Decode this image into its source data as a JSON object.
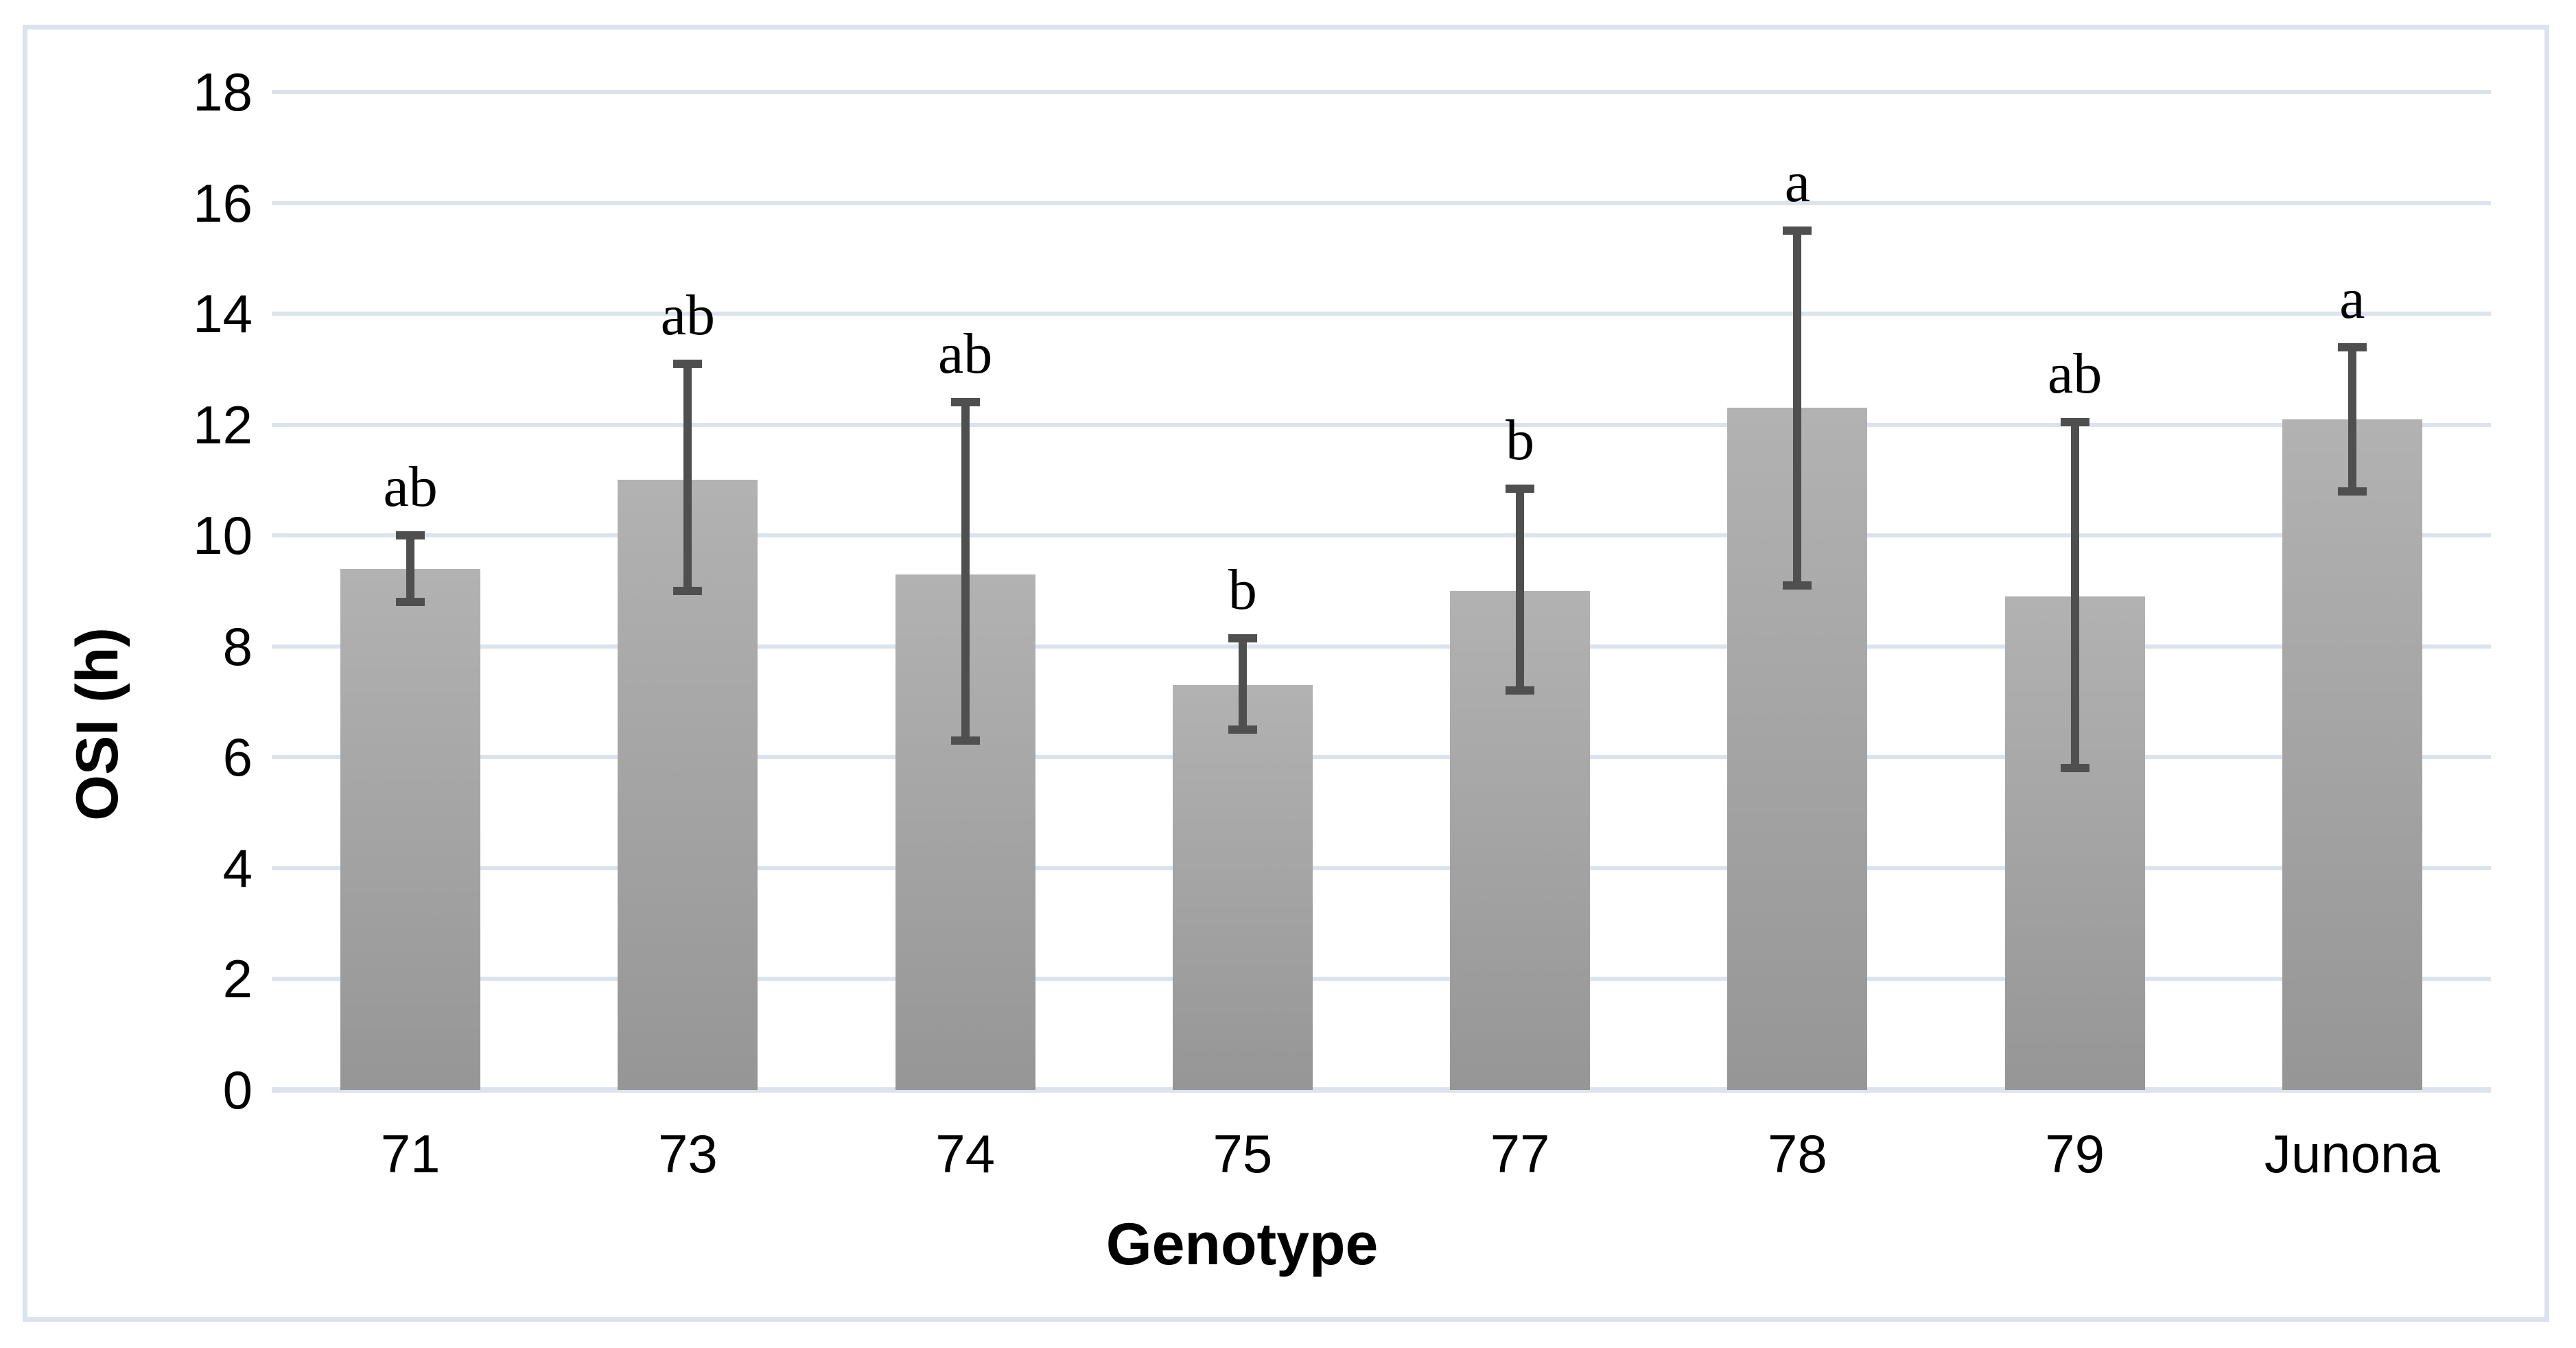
{
  "figure": {
    "background": "#ffffff",
    "border_color": "#dce3ec"
  },
  "chart_data": {
    "type": "bar",
    "xlabel": "Genotype",
    "ylabel": "OSI (h)",
    "categories": [
      "71",
      "73",
      "74",
      "75",
      "77",
      "78",
      "79",
      "Junona"
    ],
    "values": [
      9.4,
      11.0,
      9.3,
      7.3,
      9.0,
      12.3,
      8.9,
      12.1
    ],
    "error_low": [
      8.8,
      9.0,
      6.3,
      6.5,
      7.2,
      9.1,
      5.8,
      10.8
    ],
    "error_high": [
      10.0,
      13.1,
      12.4,
      8.15,
      10.85,
      15.5,
      12.05,
      13.4
    ],
    "sig_letters": [
      "ab",
      "ab",
      "ab",
      "b",
      "b",
      "a",
      "ab",
      "a"
    ],
    "ylim": [
      0,
      18
    ],
    "ytick_step": 2,
    "ytick_labels": [
      "0",
      "2",
      "4",
      "6",
      "8",
      "10",
      "12",
      "14",
      "16",
      "18"
    ],
    "grid": true,
    "legend": false,
    "bar_color_top": "#b2b2b2",
    "bar_color_bottom": "#969696",
    "gridline_color": "#dce3ec",
    "error_bar_color": "#4f4f4f"
  }
}
